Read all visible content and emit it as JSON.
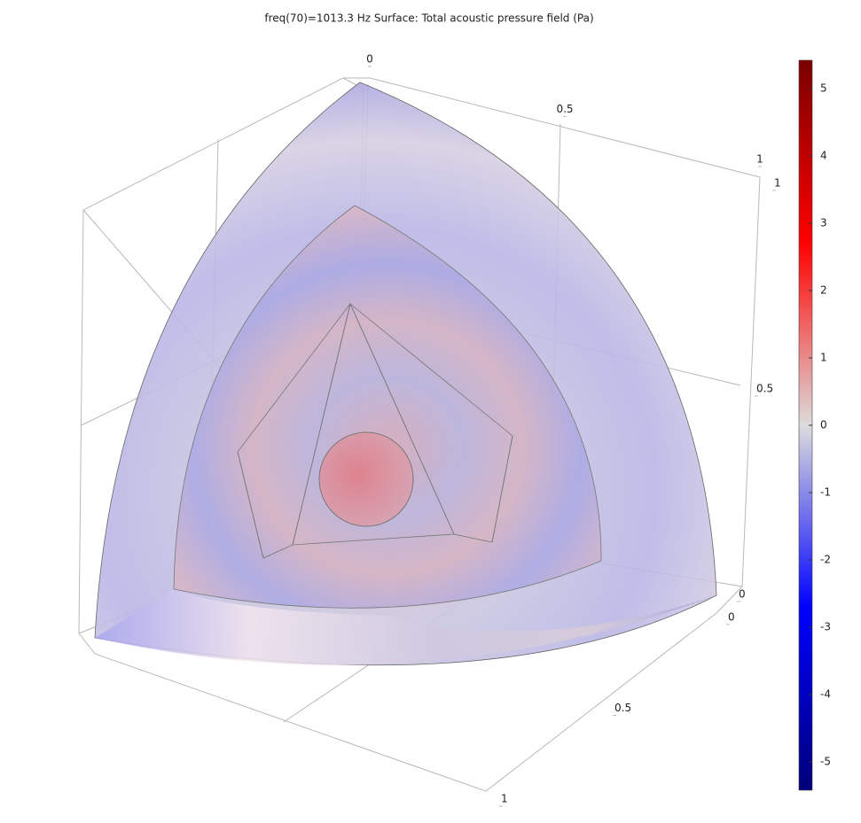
{
  "chart_data": {
    "type": "surface",
    "title": "freq(70)=1013.3 Hz   Surface: Total acoustic pressure field (Pa)",
    "xlim": [
      0,
      1
    ],
    "xticks": [
      0,
      0.5,
      1
    ],
    "ylim": [
      0,
      1
    ],
    "yticks": [
      0,
      0.5,
      1
    ],
    "zlim": [
      0,
      1
    ],
    "zticks": [
      0,
      0.5,
      1
    ],
    "colorbar": {
      "clim": [
        -5.42,
        5.42
      ],
      "ticks": [
        -5,
        -4,
        -3,
        -2,
        -1,
        0,
        1,
        2,
        3,
        4,
        5
      ],
      "colors": [
        "#00007a",
        "#0000ff",
        "#dcdcdc",
        "#ff0000",
        "#7a0000"
      ]
    }
  }
}
